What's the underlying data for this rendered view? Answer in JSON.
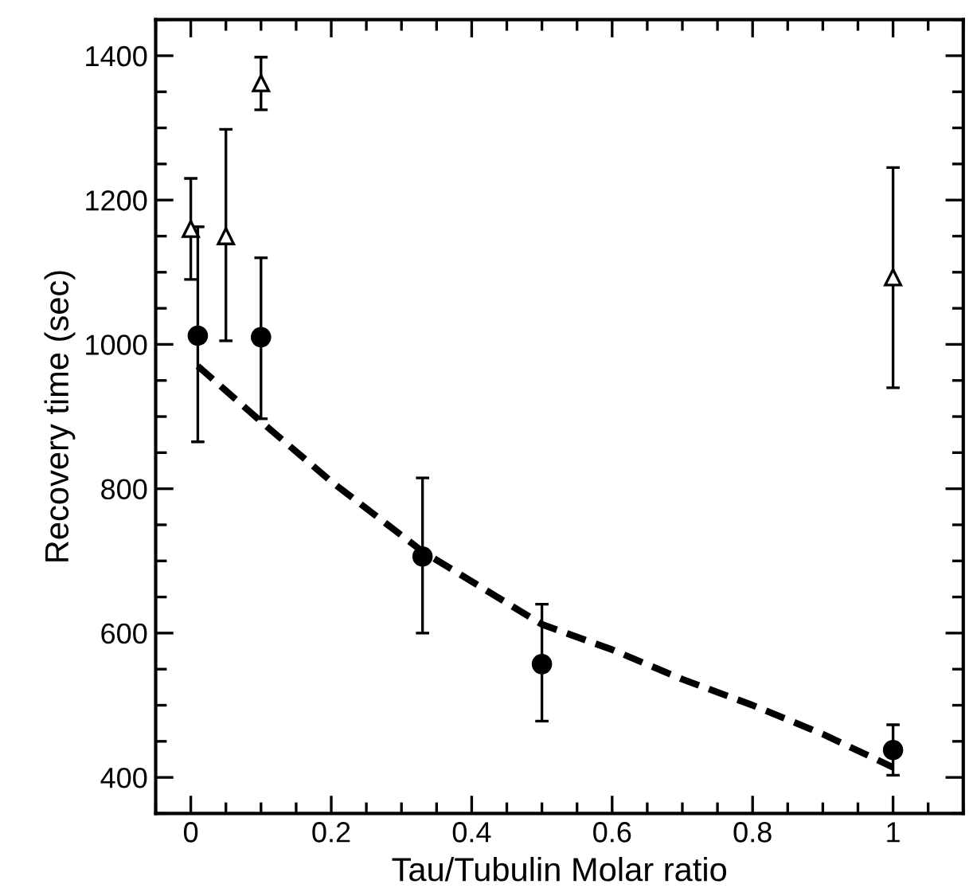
{
  "chart_data": {
    "type": "scatter",
    "xlabel": "Tau/Tubulin Molar ratio",
    "ylabel": "Recovery time (sec)",
    "xlim": [
      -0.05,
      1.1
    ],
    "ylim": [
      350,
      1450
    ],
    "xticks": [
      0,
      0.2,
      0.4,
      0.6,
      0.8,
      1
    ],
    "yticks": [
      400,
      600,
      800,
      1000,
      1200,
      1400
    ],
    "grid": false,
    "legend": false,
    "series": [
      {
        "marker": "circle",
        "color": "#000000",
        "x": [
          0.01,
          0.1,
          0.33,
          0.5,
          1
        ],
        "values": [
          1012,
          1010,
          706,
          557,
          438
        ],
        "errors": [
          [
            865,
            1163
          ],
          [
            897,
            1120
          ],
          [
            600,
            815
          ],
          [
            478,
            640
          ],
          [
            403,
            473
          ]
        ]
      },
      {
        "marker": "triangle",
        "color": "#000000",
        "x": [
          0,
          0.05,
          0.1,
          1
        ],
        "values": [
          1160,
          1150,
          1362,
          1093
        ],
        "errors": [
          [
            1090,
            1230
          ],
          [
            1005,
            1298
          ],
          [
            1325,
            1398
          ],
          [
            940,
            1245
          ]
        ]
      },
      {
        "type": "line",
        "marker": "none",
        "line_style": "dashed",
        "color": "#000000",
        "x": [
          0.01,
          0.1,
          0.2,
          0.33,
          0.364,
          0.5,
          0.6,
          0.7,
          0.8,
          0.9,
          1
        ],
        "values": [
          970,
          893,
          810,
          713,
          693,
          612,
          577,
          536,
          500,
          460,
          414
        ]
      }
    ]
  }
}
